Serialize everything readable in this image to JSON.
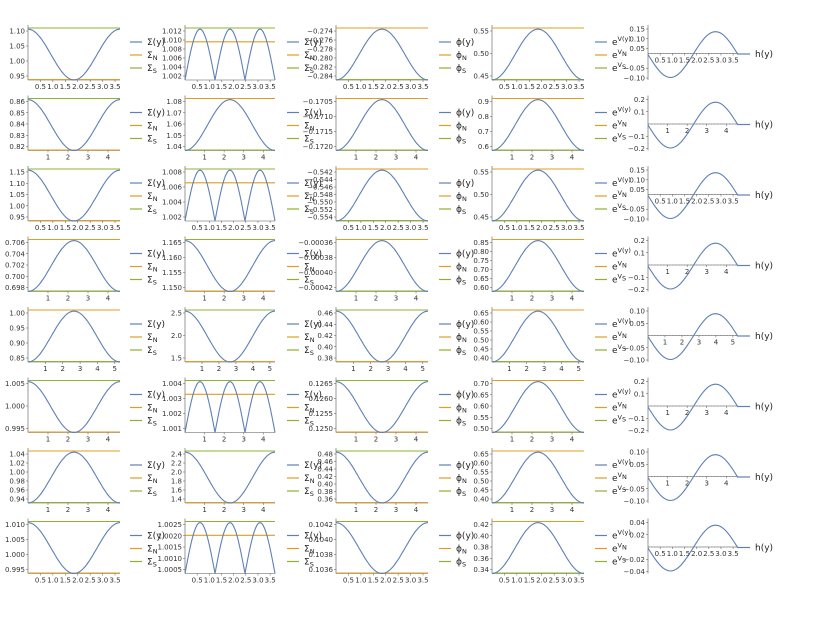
{
  "colors": {
    "curve": "#5e81b5",
    "north": "#e19c24",
    "south": "#8fb032",
    "axis": "#555555",
    "h_line": "#5e81b5"
  },
  "legend_icons": {
    "curve": "line-swatch-blue",
    "north": "line-swatch-orange",
    "south": "line-swatch-green"
  },
  "legend_labels": {
    "sigma": [
      "Σ(y)",
      "Σ",
      "N",
      "Σ",
      "S"
    ],
    "phi": [
      "ϕ(y)",
      "ϕ",
      "N",
      "ϕ",
      "S"
    ],
    "exp": [
      "e",
      "V(y)",
      "e",
      "V",
      "N",
      "e",
      "V",
      "S"
    ],
    "h": "h(y)"
  },
  "rows": [
    {
      "x_ticks": [
        [
          "0.5",
          "1.0",
          "1.5",
          "2.0",
          "2.5",
          "3.0",
          "3.5"
        ],
        [
          "0.5",
          "1.0",
          "1.5",
          "2.0",
          "2.5",
          "3.0",
          "3.5"
        ],
        [
          "0.5",
          "1.0",
          "1.5",
          "2.0",
          "2.5",
          "3.0",
          "3.5"
        ],
        [
          "0.5",
          "1.0",
          "1.5",
          "2.0",
          "2.5",
          "3.0",
          "3.5"
        ],
        [
          "0.5",
          "1.0",
          "1.5",
          "2.0",
          "2.5",
          "3.0",
          "3.5"
        ]
      ],
      "x_range": [
        0,
        3.7
      ],
      "y_ticks": [
        [
          "1.10",
          "1.05",
          "1.00",
          "0.95"
        ],
        [
          "1.012",
          "1.010",
          "1.008",
          "1.006",
          "1.004",
          "1.002"
        ],
        [
          "−0.274",
          "−0.276",
          "−0.278",
          "−0.280",
          "−0.282",
          "−0.284"
        ],
        [
          "0.55",
          "0.50",
          "0.45"
        ],
        [
          "0.15",
          "0.10",
          "0.05",
          "−0.05",
          "−0.10"
        ]
      ]
    },
    {
      "x_ticks": [
        [
          "1",
          "2",
          "3",
          "4"
        ],
        [
          "1",
          "2",
          "3",
          "4"
        ],
        [
          "1",
          "2",
          "3",
          "4"
        ],
        [
          "1",
          "2",
          "3",
          "4"
        ],
        [
          "1",
          "2",
          "3",
          "4"
        ]
      ],
      "x_range": [
        0,
        4.6
      ],
      "y_ticks": [
        [
          "0.86",
          "0.85",
          "0.84",
          "0.83",
          "0.82"
        ],
        [
          "1.08",
          "1.07",
          "1.06",
          "1.05",
          "1.04"
        ],
        [
          "−0.1705",
          "−0.1710",
          "−0.1715",
          "−0.1720"
        ],
        [
          "0.9",
          "0.8",
          "0.7",
          "0.6"
        ],
        [
          "0.2",
          "0.1",
          "−0.1",
          "−0.2"
        ]
      ]
    },
    {
      "x_ticks": [
        [
          "0.5",
          "1.0",
          "1.5",
          "2.0",
          "2.5",
          "3.0",
          "3.5"
        ],
        [
          "0.5",
          "1.0",
          "1.5",
          "2.0",
          "2.5",
          "3.0",
          "3.5"
        ],
        [
          "0.5",
          "1.0",
          "1.5",
          "2.0",
          "2.5",
          "3.0",
          "3.5"
        ],
        [
          "0.5",
          "1.0",
          "1.5",
          "2.0",
          "2.5",
          "3.0",
          "3.5"
        ],
        [
          "0.5",
          "1.0",
          "1.5",
          "2.0",
          "2.5",
          "3.0",
          "3.5"
        ]
      ],
      "x_range": [
        0,
        3.7
      ],
      "y_ticks": [
        [
          "1.15",
          "1.10",
          "1.05",
          "1.00",
          "0.95"
        ],
        [
          "1.008",
          "1.006",
          "1.004",
          "1.002"
        ],
        [
          "−0.542",
          "−0.544",
          "−0.546",
          "−0.548",
          "−0.550",
          "−0.552",
          "−0.554"
        ],
        [
          "0.55",
          "0.50",
          "0.45"
        ],
        [
          "0.15",
          "0.10",
          "0.05",
          "−0.05",
          "−0.10"
        ]
      ]
    },
    {
      "x_ticks": [
        [
          "1",
          "2",
          "3",
          "4"
        ],
        [
          "1",
          "2",
          "3",
          "4"
        ],
        [
          "1",
          "2",
          "3",
          "4"
        ],
        [
          "1",
          "2",
          "3",
          "4"
        ],
        [
          "1",
          "2",
          "3",
          "4"
        ]
      ],
      "x_range": [
        0,
        4.6
      ],
      "y_ticks": [
        [
          "0.706",
          "0.704",
          "0.702",
          "0.700",
          "0.698"
        ],
        [
          "1.165",
          "1.160",
          "1.155",
          "1.150"
        ],
        [
          "−0.00036",
          "−0.00038",
          "−0.00040",
          "−0.00042"
        ],
        [
          "0.85",
          "0.80",
          "0.75",
          "0.70",
          "0.65",
          "0.60"
        ],
        [
          "0.2",
          "0.1",
          "−0.1",
          "−0.2"
        ]
      ]
    },
    {
      "x_ticks": [
        [
          "1",
          "2",
          "3",
          "4",
          "5"
        ],
        [
          "1",
          "2",
          "3",
          "4",
          "5"
        ],
        [
          "1",
          "2",
          "3",
          "4",
          "5"
        ],
        [
          "1",
          "2",
          "3",
          "4",
          "5"
        ],
        [
          "1",
          "2",
          "3",
          "4",
          "5"
        ]
      ],
      "x_range": [
        0,
        5.3
      ],
      "y_ticks": [
        [
          "1.00",
          "0.95",
          "0.90",
          "0.85"
        ],
        [
          "2.5",
          "2.0",
          "1.5"
        ],
        [
          "0.46",
          "0.44",
          "0.42",
          "0.40",
          "0.38"
        ],
        [
          "0.65",
          "0.60",
          "0.55",
          "0.50",
          "0.45",
          "0.40"
        ],
        [
          "0.10",
          "0.05",
          "−0.05",
          "−0.10"
        ]
      ]
    },
    {
      "x_ticks": [
        [
          "1",
          "2",
          "3",
          "4"
        ],
        [
          "1",
          "2",
          "3",
          "4"
        ],
        [
          "1",
          "2",
          "3",
          "4"
        ],
        [
          "1",
          "2",
          "3",
          "4"
        ],
        [
          "1",
          "2",
          "3",
          "4"
        ]
      ],
      "x_range": [
        0,
        4.6
      ],
      "y_ticks": [
        [
          "1.005",
          "1.000",
          "0.995"
        ],
        [
          "1.004",
          "1.003",
          "1.002",
          "1.001"
        ],
        [
          "0.1265",
          "0.1260",
          "0.1255",
          "0.1250"
        ],
        [
          "0.70",
          "0.65",
          "0.60",
          "0.55",
          "0.50"
        ],
        [
          "0.2",
          "0.1",
          "−0.1",
          "−0.2"
        ]
      ]
    },
    {
      "x_ticks": [
        [
          "1",
          "2",
          "3",
          "4"
        ],
        [
          "1",
          "2",
          "3",
          "4"
        ],
        [
          "1",
          "2",
          "3",
          "4"
        ],
        [
          "1",
          "2",
          "3",
          "4"
        ],
        [
          "1",
          "2",
          "3",
          "4"
        ]
      ],
      "x_range": [
        0,
        4.6
      ],
      "y_ticks": [
        [
          "1.04",
          "1.02",
          "1.00",
          "0.98",
          "0.96",
          "0.94"
        ],
        [
          "2.4",
          "2.2",
          "2.0",
          "1.8",
          "1.6",
          "1.4"
        ],
        [
          "0.48",
          "0.46",
          "0.44",
          "0.42",
          "0.40",
          "0.38",
          "0.36"
        ],
        [
          "0.65",
          "0.60",
          "0.55",
          "0.50",
          "0.45",
          "0.40"
        ],
        [
          "0.10",
          "0.05",
          "−0.05",
          "−0.10"
        ]
      ]
    },
    {
      "x_ticks": [
        [
          "0.5",
          "1.0",
          "1.5",
          "2.0",
          "2.5",
          "3.0",
          "3.5"
        ],
        [
          "0.5",
          "1.0",
          "1.5",
          "2.0",
          "2.5",
          "3.0",
          "3.5"
        ],
        [
          "0.5",
          "1.0",
          "1.5",
          "2.0",
          "2.5",
          "3.0",
          "3.5"
        ],
        [
          "0.5",
          "1.0",
          "1.5",
          "2.0",
          "2.5",
          "3.0",
          "3.5"
        ],
        [
          "0.5",
          "1.0",
          "1.5",
          "2.0",
          "2.5",
          "3.0",
          "3.5"
        ]
      ],
      "x_range": [
        0,
        3.7
      ],
      "y_ticks": [
        [
          "1.010",
          "1.005",
          "1.000",
          "0.995"
        ],
        [
          "1.0025",
          "1.0020",
          "1.0015",
          "1.0010",
          "1.0005"
        ],
        [
          "0.1042",
          "0.1040",
          "0.1038",
          "0.1036"
        ],
        [
          "0.42",
          "0.40",
          "0.38",
          "0.36",
          "0.34"
        ],
        [
          "0.04",
          "0.02",
          "−0.02",
          "−0.04"
        ]
      ]
    }
  ],
  "chart_data": {
    "type": "line",
    "panel_grid": {
      "rows": 8,
      "columns": 5
    },
    "column_kinds": [
      "sigma",
      "sigma_double",
      "phi",
      "exp",
      "h"
    ],
    "row_profiles": [
      {
        "cols": [
          {
            "shape": "valley",
            "min_x": 1.85
          },
          {
            "shape": "double_dip",
            "dips_x": [
              0.6,
              3.1
            ],
            "peak_x": 1.85
          },
          {
            "shape": "hill",
            "max_x": 1.85
          },
          {
            "shape": "hill",
            "max_x": 1.85
          },
          {
            "shape": "antisymmetric",
            "zero_x": 1.85
          }
        ]
      },
      {
        "cols": [
          {
            "shape": "valley",
            "min_x": 2.3
          },
          {
            "shape": "hill",
            "max_x": 2.3
          },
          {
            "shape": "hill",
            "max_x": 2.3
          },
          {
            "shape": "hill",
            "max_x": 2.3
          },
          {
            "shape": "antisymmetric",
            "zero_x": 2.3
          }
        ]
      },
      {
        "cols": [
          {
            "shape": "valley",
            "min_x": 1.85
          },
          {
            "shape": "double_dip",
            "dips_x": [
              0.6,
              3.1
            ],
            "peak_x": 1.85
          },
          {
            "shape": "hill",
            "max_x": 1.85
          },
          {
            "shape": "hill",
            "max_x": 1.85
          },
          {
            "shape": "antisymmetric",
            "zero_x": 1.85
          }
        ]
      },
      {
        "cols": [
          {
            "shape": "hill",
            "max_x": 2.3
          },
          {
            "shape": "valley",
            "min_x": 2.3
          },
          {
            "shape": "hill",
            "max_x": 2.3
          },
          {
            "shape": "hill",
            "max_x": 2.3
          },
          {
            "shape": "antisymmetric",
            "zero_x": 2.3
          }
        ]
      },
      {
        "cols": [
          {
            "shape": "hill",
            "max_x": 2.65
          },
          {
            "shape": "valley",
            "min_x": 2.65
          },
          {
            "shape": "valley",
            "min_x": 2.65
          },
          {
            "shape": "hill",
            "max_x": 2.65
          },
          {
            "shape": "antisymmetric",
            "zero_x": 2.65
          }
        ]
      },
      {
        "cols": [
          {
            "shape": "valley",
            "min_x": 2.3
          },
          {
            "shape": "double_dip",
            "dips_x": [
              0.8,
              3.8
            ],
            "peak_x": 2.3
          },
          {
            "shape": "valley",
            "min_x": 2.3
          },
          {
            "shape": "hill",
            "max_x": 2.3
          },
          {
            "shape": "antisymmetric",
            "zero_x": 2.3
          }
        ]
      },
      {
        "cols": [
          {
            "shape": "hill",
            "max_x": 2.3
          },
          {
            "shape": "valley",
            "min_x": 2.3
          },
          {
            "shape": "valley",
            "min_x": 2.3
          },
          {
            "shape": "hill",
            "max_x": 2.3
          },
          {
            "shape": "antisymmetric",
            "zero_x": 2.3
          }
        ]
      },
      {
        "cols": [
          {
            "shape": "valley",
            "min_x": 1.85
          },
          {
            "shape": "double_dip",
            "dips_x": [
              0.6,
              3.1
            ],
            "peak_x": 1.85
          },
          {
            "shape": "valley",
            "min_x": 1.85
          },
          {
            "shape": "hill",
            "max_x": 1.85
          },
          {
            "shape": "antisymmetric",
            "zero_x": 1.85
          }
        ]
      }
    ]
  }
}
